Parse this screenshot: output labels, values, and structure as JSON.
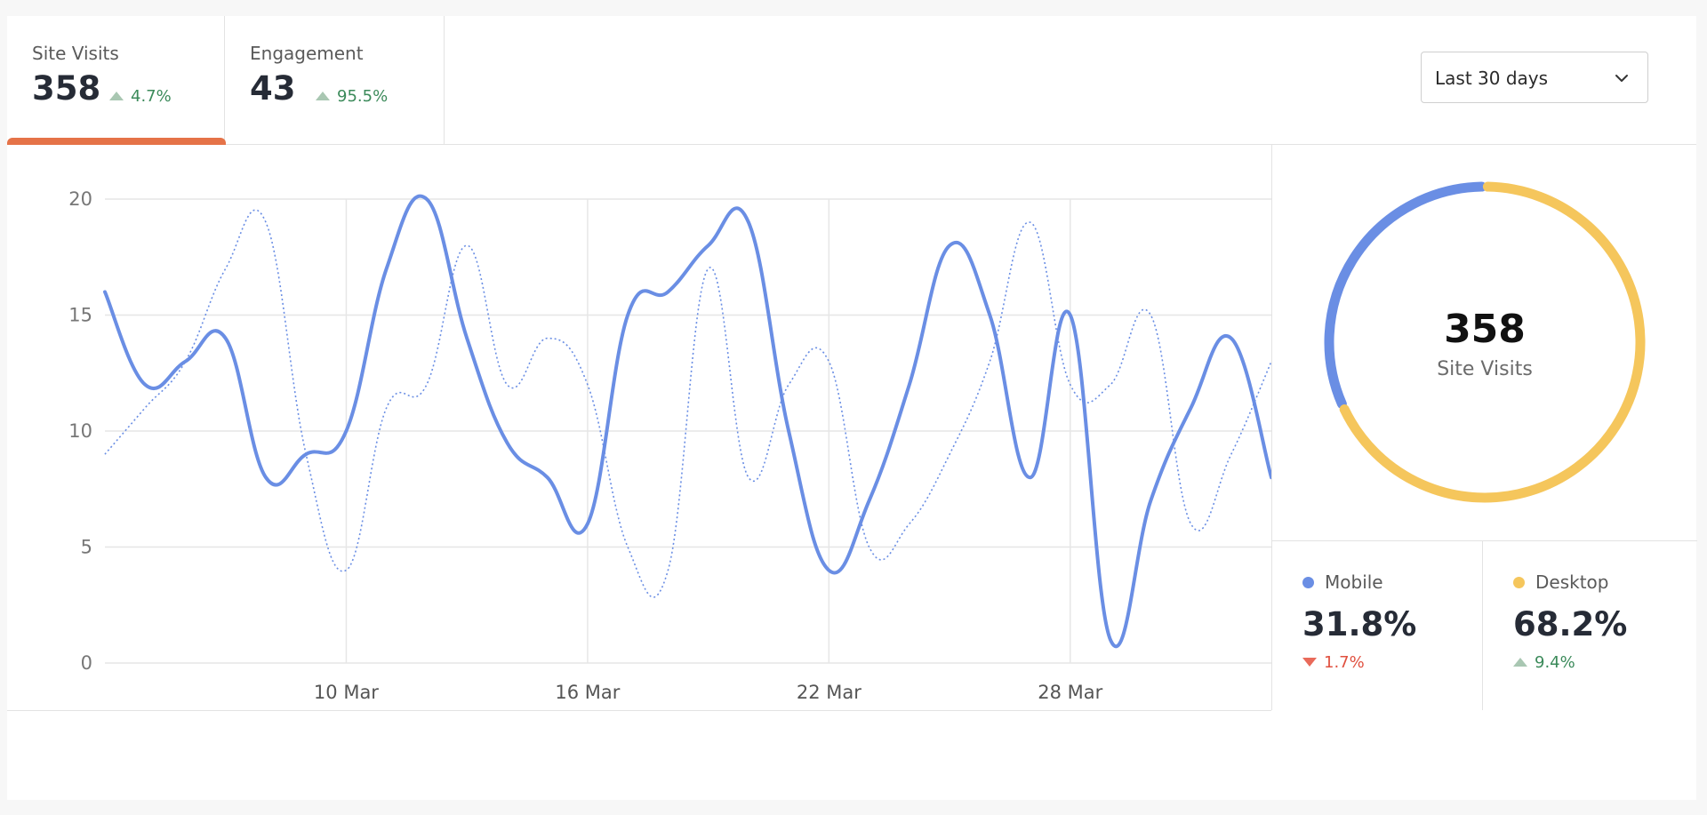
{
  "tabs": [
    {
      "label": "Site Visits",
      "value": "358",
      "change": "4.7%",
      "direction": "up",
      "active": true
    },
    {
      "label": "Engagement",
      "value": "43",
      "change": "95.5%",
      "direction": "up",
      "active": false
    }
  ],
  "range": {
    "selected": "Last 30 days"
  },
  "colors": {
    "accent": "#e57348",
    "line": "#6a8ee4",
    "mobile": "#6a8ee4",
    "desktop": "#f5c65c",
    "positive": "#3b8a5a",
    "negative": "#e0503f"
  },
  "donut": {
    "value": "358",
    "label": "Site Visits"
  },
  "stats": [
    {
      "name": "Mobile",
      "value": "31.8%",
      "change": "1.7%",
      "direction": "down",
      "color": "#6a8ee4"
    },
    {
      "name": "Desktop",
      "value": "68.2%",
      "change": "9.4%",
      "direction": "up",
      "color": "#f5c65c"
    }
  ],
  "chart_data": [
    {
      "type": "line",
      "title": "",
      "xlabel": "",
      "ylabel": "",
      "ylim": [
        0,
        20
      ],
      "y_ticks": [
        "0",
        "5",
        "10",
        "15",
        "20"
      ],
      "x_ticks": [
        "10 Mar",
        "16 Mar",
        "22 Mar",
        "28 Mar"
      ],
      "x": [
        "4 Mar",
        "5 Mar",
        "6 Mar",
        "7 Mar",
        "8 Mar",
        "9 Mar",
        "10 Mar",
        "11 Mar",
        "12 Mar",
        "13 Mar",
        "14 Mar",
        "15 Mar",
        "16 Mar",
        "17 Mar",
        "18 Mar",
        "19 Mar",
        "20 Mar",
        "21 Mar",
        "22 Mar",
        "23 Mar",
        "24 Mar",
        "25 Mar",
        "26 Mar",
        "27 Mar",
        "28 Mar",
        "29 Mar",
        "30 Mar",
        "31 Mar",
        "1 Apr",
        "2 Apr"
      ],
      "grid": true,
      "series": [
        {
          "style": "solid",
          "values": [
            16,
            12,
            13,
            14,
            8,
            9,
            10,
            17,
            20,
            14,
            9.5,
            8,
            6,
            15,
            16,
            18,
            19,
            10,
            4,
            7,
            12,
            18,
            15,
            8,
            15,
            1,
            7,
            11,
            14,
            8
          ]
        },
        {
          "style": "dotted",
          "values": [
            9,
            11,
            13,
            17,
            19,
            9,
            4,
            11,
            12,
            18,
            12,
            14,
            12,
            5,
            4,
            17,
            8,
            12,
            13,
            5,
            6,
            9,
            13,
            19,
            12,
            12,
            15,
            6,
            9,
            13
          ]
        }
      ]
    },
    {
      "type": "pie",
      "title": "",
      "categories": [
        "Mobile",
        "Desktop"
      ],
      "values": [
        31.8,
        68.2
      ],
      "center_text": "358",
      "center_label": "Site Visits"
    }
  ]
}
